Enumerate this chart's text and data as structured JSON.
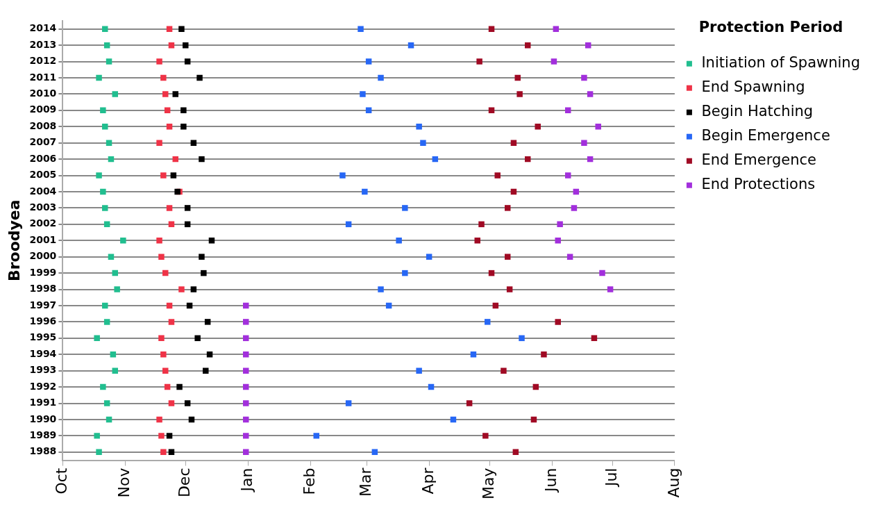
{
  "chart_data": {
    "type": "scatter",
    "ylabel": "Broodyea",
    "legend_title": "Protection Period",
    "legend": "top right",
    "marker": "square",
    "grid": "y",
    "xlim": [
      "2000-10-01",
      "2001-08-01"
    ],
    "xticks": [
      {
        "value": "2000-10-01",
        "label": "Oct"
      },
      {
        "value": "2000-11-01",
        "label": "Nov"
      },
      {
        "value": "2000-12-01",
        "label": "Dec"
      },
      {
        "value": "2001-01-01",
        "label": "Jan"
      },
      {
        "value": "2001-02-01",
        "label": "Feb"
      },
      {
        "value": "2001-03-01",
        "label": "Mar"
      },
      {
        "value": "2001-04-01",
        "label": "Apr"
      },
      {
        "value": "2001-05-01",
        "label": "May"
      },
      {
        "value": "2001-06-01",
        "label": "Jun"
      },
      {
        "value": "2001-07-01",
        "label": "Jul"
      },
      {
        "value": "2001-08-01",
        "label": "Aug"
      }
    ],
    "ylim": [
      1987.5,
      2014.5
    ],
    "yticks": [
      1988,
      1989,
      1990,
      1991,
      1992,
      1993,
      1994,
      1995,
      1996,
      1997,
      1998,
      1999,
      2000,
      2001,
      2002,
      2003,
      2004,
      2005,
      2006,
      2007,
      2008,
      2009,
      2010,
      2011,
      2012,
      2013,
      2014
    ],
    "series": [
      {
        "name": "Initiation of Spawning",
        "color": "#21be8f",
        "values": [
          2014,
          2013,
          2012,
          2011,
          2010,
          2009,
          2008,
          2007,
          2006,
          2005,
          2004,
          2003,
          2002,
          2001,
          2000,
          1999,
          1998,
          1997,
          1996,
          1995,
          1994,
          1993,
          1992,
          1991,
          1990,
          1989,
          1988
        ],
        "x": [
          "2000-10-22",
          "2000-10-23",
          "2000-10-24",
          "2000-10-19",
          "2000-10-27",
          "2000-10-21",
          "2000-10-22",
          "2000-10-24",
          "2000-10-25",
          "2000-10-19",
          "2000-10-21",
          "2000-10-22",
          "2000-10-23",
          "2000-10-31",
          "2000-10-25",
          "2000-10-27",
          "2000-10-28",
          "2000-10-22",
          "2000-10-23",
          "2000-10-18",
          "2000-10-26",
          "2000-10-27",
          "2000-10-21",
          "2000-10-23",
          "2000-10-24",
          "2000-10-18",
          "2000-10-19"
        ]
      },
      {
        "name": "End Spawning",
        "color": "#ef3347",
        "values": [
          2014,
          2013,
          2012,
          2011,
          2010,
          2009,
          2008,
          2007,
          2006,
          2005,
          2004,
          2003,
          2002,
          2001,
          2000,
          1999,
          1998,
          1997,
          1996,
          1995,
          1994,
          1993,
          1992,
          1991,
          1990,
          1989,
          1988
        ],
        "x": [
          "2000-11-23",
          "2000-11-24",
          "2000-11-18",
          "2000-11-20",
          "2000-11-21",
          "2000-11-22",
          "2000-11-23",
          "2000-11-18",
          "2000-11-26",
          "2000-11-20",
          "2000-11-28",
          "2000-11-23",
          "2000-11-24",
          "2000-11-18",
          "2000-11-19",
          "2000-11-21",
          "2000-11-29",
          "2000-11-23",
          "2000-11-24",
          "2000-11-19",
          "2000-11-20",
          "2000-11-21",
          "2000-11-22",
          "2000-11-24",
          "2000-11-18",
          "2000-11-19",
          "2000-11-20"
        ]
      },
      {
        "name": "Begin Hatching",
        "color": "#000000",
        "values": [
          2014,
          2013,
          2012,
          2011,
          2010,
          2009,
          2008,
          2007,
          2006,
          2005,
          2004,
          2003,
          2002,
          2001,
          2000,
          1999,
          1998,
          1997,
          1996,
          1995,
          1994,
          1993,
          1992,
          1991,
          1990,
          1989,
          1988
        ],
        "x": [
          "2000-11-29",
          "2000-12-01",
          "2000-12-02",
          "2000-12-08",
          "2000-11-26",
          "2000-11-30",
          "2000-11-30",
          "2000-12-05",
          "2000-12-09",
          "2000-11-25",
          "2000-11-27",
          "2000-12-02",
          "2000-12-02",
          "2000-12-14",
          "2000-12-09",
          "2000-12-10",
          "2000-12-05",
          "2000-12-03",
          "2000-12-12",
          "2000-12-07",
          "2000-12-13",
          "2000-12-11",
          "2000-11-28",
          "2000-12-02",
          "2000-12-04",
          "2000-11-23",
          "2000-11-24"
        ]
      },
      {
        "name": "Begin Emergence",
        "color": "#2767f5",
        "values": [
          2014,
          2013,
          2012,
          2011,
          2010,
          2009,
          2008,
          2007,
          2006,
          2005,
          2004,
          2003,
          2002,
          2001,
          2000,
          1999,
          1998,
          1997,
          1996,
          1995,
          1994,
          1993,
          1992,
          1991,
          1990,
          1989,
          1988
        ],
        "x": [
          "2001-02-26",
          "2001-03-23",
          "2001-03-02",
          "2001-03-08",
          "2001-02-27",
          "2001-03-02",
          "2001-03-27",
          "2001-03-29",
          "2001-04-04",
          "2001-02-17",
          "2001-02-28",
          "2001-03-20",
          "2001-02-20",
          "2001-03-17",
          "2001-04-01",
          "2001-03-20",
          "2001-03-08",
          "2001-03-12",
          "2001-04-30",
          "2001-05-17",
          "2001-04-23",
          "2001-03-27",
          "2001-04-02",
          "2001-02-20",
          "2001-04-13",
          "2001-02-04",
          "2001-03-05"
        ]
      },
      {
        "name": "End Emergence",
        "color": "#a00a24",
        "values": [
          2014,
          2013,
          2012,
          2011,
          2010,
          2009,
          2008,
          2007,
          2006,
          2005,
          2004,
          2003,
          2002,
          2001,
          2000,
          1999,
          1998,
          1997,
          1996,
          1995,
          1994,
          1993,
          1992,
          1991,
          1990,
          1989,
          1988
        ],
        "x": [
          "2001-05-02",
          "2001-05-20",
          "2001-04-26",
          "2001-05-15",
          "2001-05-16",
          "2001-05-02",
          "2001-05-25",
          "2001-05-13",
          "2001-05-20",
          "2001-05-05",
          "2001-05-13",
          "2001-05-10",
          "2001-04-27",
          "2001-04-25",
          "2001-05-10",
          "2001-05-02",
          "2001-05-11",
          "2001-05-04",
          "2001-06-04",
          "2001-06-22",
          "2001-05-28",
          "2001-05-08",
          "2001-05-24",
          "2001-04-21",
          "2001-05-23",
          "2001-04-29",
          "2001-05-14"
        ]
      },
      {
        "name": "End Protections",
        "color": "#a22fdc",
        "values": [
          2014,
          2013,
          2012,
          2011,
          2010,
          2009,
          2008,
          2007,
          2006,
          2005,
          2004,
          2003,
          2002,
          2001,
          2000,
          1999,
          1998,
          1997,
          1996,
          1995,
          1994,
          1993,
          1992,
          1991,
          1990,
          1989,
          1988
        ],
        "x": [
          "2001-06-03",
          "2001-06-19",
          "2001-06-02",
          "2001-06-17",
          "2001-06-20",
          "2001-06-09",
          "2001-06-24",
          "2001-06-17",
          "2001-06-20",
          "2001-06-09",
          "2001-06-13",
          "2001-06-12",
          "2001-06-05",
          "2001-06-04",
          "2001-06-10",
          "2001-06-26",
          "2001-06-30",
          "2000-12-31",
          "2000-12-31",
          "2000-12-31",
          "2000-12-31",
          "2000-12-31",
          "2000-12-31",
          "2000-12-31",
          "2000-12-31",
          "2000-12-31",
          "2000-12-31"
        ]
      }
    ]
  }
}
